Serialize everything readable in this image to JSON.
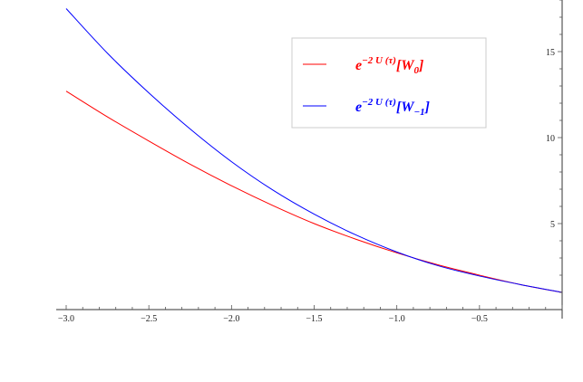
{
  "chart_data": {
    "type": "line",
    "title": "",
    "xlabel": "",
    "ylabel": "",
    "xlim": [
      -3.0,
      0.0
    ],
    "ylim": [
      0,
      18
    ],
    "axis_origin": {
      "x_axis_at_y": 0,
      "y_axis_at_x": 0,
      "y_axis_position": "right"
    },
    "x_ticks": [
      "-3.0",
      "-2.5",
      "-2.0",
      "-1.5",
      "-1.0",
      "-0.5"
    ],
    "y_ticks": [
      "5",
      "10",
      "15"
    ],
    "grid": false,
    "legend": {
      "position": "top-right",
      "entries": [
        {
          "series": 0,
          "base": "e",
          "exponent": "−2 U (τ)",
          "bracket_open": "[",
          "name": "W",
          "subscript": "0",
          "bracket_close": "]",
          "color": "#ff0000"
        },
        {
          "series": 1,
          "base": "e",
          "exponent": "−2 U (τ)",
          "bracket_open": "[",
          "name": "W",
          "subscript": "−1",
          "bracket_close": "]",
          "color": "#0000ff"
        }
      ]
    },
    "series": [
      {
        "name": "e−2U(τ)[W0]",
        "color": "#ff0000",
        "x": [
          -3.0,
          -2.75,
          -2.5,
          -2.25,
          -2.0,
          -1.75,
          -1.5,
          -1.25,
          -1.0,
          -0.75,
          -0.5,
          -0.25,
          0.0
        ],
        "y": [
          12.7,
          11.2,
          9.8,
          8.45,
          7.2,
          6.05,
          5.0,
          4.1,
          3.3,
          2.6,
          2.0,
          1.45,
          1.0
        ]
      },
      {
        "name": "e−2U(τ)[W−1]",
        "color": "#0000ff",
        "x": [
          -3.0,
          -2.75,
          -2.5,
          -2.25,
          -2.0,
          -1.75,
          -1.5,
          -1.25,
          -1.0,
          -0.75,
          -0.5,
          -0.25,
          0.0
        ],
        "y": [
          17.5,
          14.9,
          12.6,
          10.5,
          8.6,
          6.95,
          5.55,
          4.35,
          3.35,
          2.55,
          1.95,
          1.45,
          1.0
        ]
      }
    ]
  }
}
